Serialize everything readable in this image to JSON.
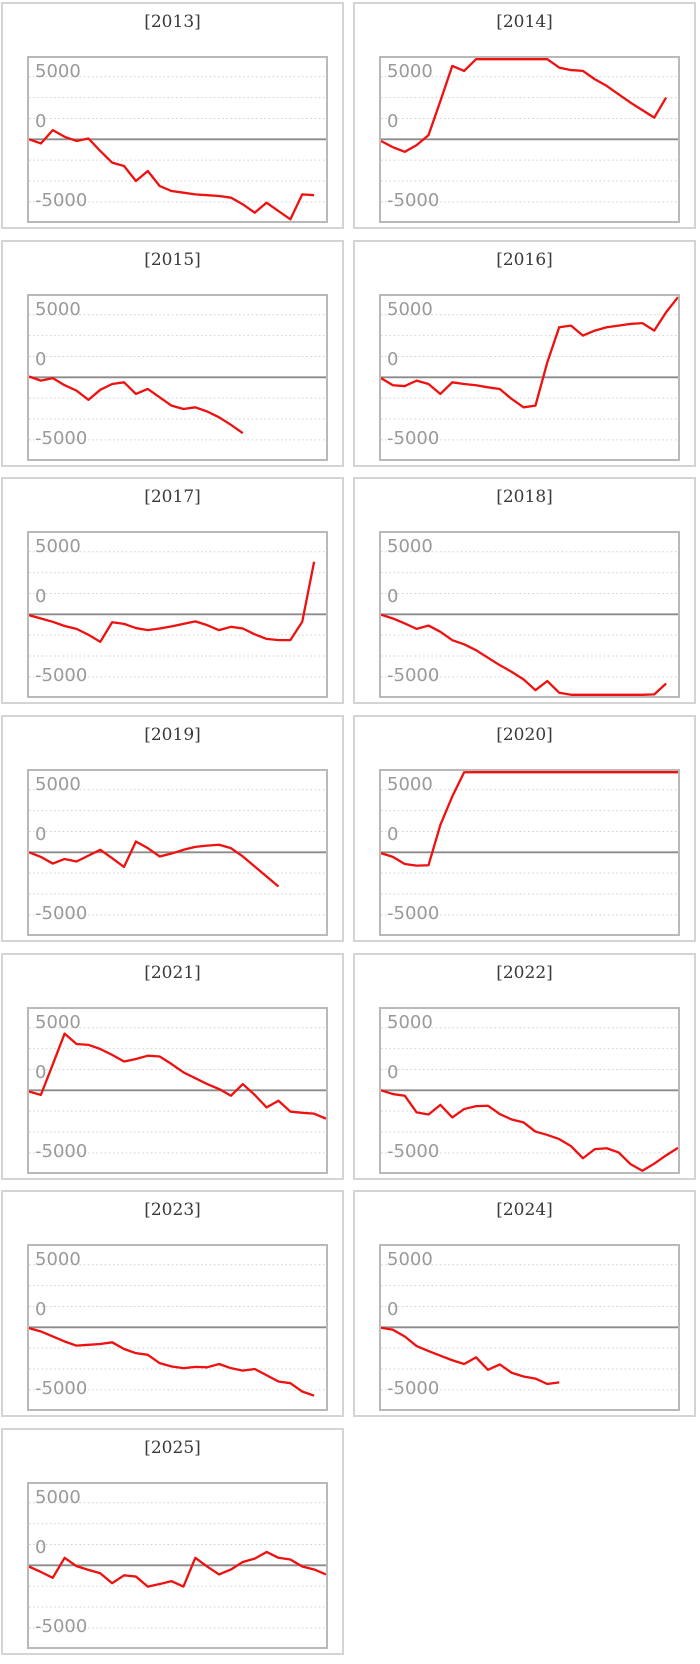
{
  "page": {
    "background": "#ffffff"
  },
  "axis": {
    "tick_labels": [
      "5000",
      "0",
      "-5000"
    ],
    "tick_values": [
      5000,
      0,
      -5000
    ],
    "gridline_step": 2500,
    "ylim": [
      -9800,
      9750
    ],
    "zero_line": true,
    "grid_style": "dotted",
    "x_axis_labels": "none"
  },
  "style": {
    "series_color": "#ef1010",
    "grid_color": "#d2d2d2",
    "zero_line_color": "#8b8b8b",
    "plot_border_color": "#b9b9b9",
    "cell_border_color": "#d4d4d4",
    "title_color": "#3a3a3a",
    "tick_label_color": "#9a9a9a"
  },
  "chart_data": [
    {
      "type": "line",
      "title": "[2013]",
      "legend": "none",
      "x": "index (0-25)",
      "values": [
        0,
        -500,
        1100,
        300,
        -200,
        100,
        -1400,
        -2800,
        -3200,
        -5000,
        -3800,
        -5600,
        -6200,
        -6400,
        -6600,
        -6700,
        -6800,
        -7000,
        -7800,
        -8800,
        -7600,
        -8600,
        -9600,
        -6600,
        -6700
      ]
    },
    {
      "type": "line",
      "title": "[2014]",
      "legend": "none",
      "x": "index (0-25)",
      "values": [
        -200,
        -950,
        -1500,
        -700,
        500,
        4600,
        8800,
        8200,
        9900,
        10000,
        10000,
        10000,
        10000,
        10000,
        10000,
        8600,
        8300,
        8200,
        7200,
        6400,
        5400,
        4400,
        3500,
        2600,
        5000
      ]
    },
    {
      "type": "line",
      "title": "[2015]",
      "legend": "none",
      "x": "index (0-25)",
      "values": [
        100,
        -400,
        -100,
        -950,
        -1600,
        -2700,
        -1500,
        -800,
        -600,
        -2000,
        -1400,
        -2400,
        -3400,
        -3800,
        -3600,
        -4100,
        -4800,
        -5700,
        -6700
      ]
    },
    {
      "type": "line",
      "title": "[2016]",
      "legend": "none",
      "x": "index (0-25)",
      "values": [
        -100,
        -950,
        -1050,
        -400,
        -800,
        -2000,
        -600,
        -800,
        -950,
        -1200,
        -1400,
        -2600,
        -3600,
        -3400,
        1800,
        6000,
        6200,
        5000,
        5600,
        6000,
        6200,
        6400,
        6500,
        5600,
        7800,
        9900
      ]
    },
    {
      "type": "line",
      "title": "[2017]",
      "legend": "none",
      "x": "index (0-25)",
      "values": [
        -100,
        -500,
        -900,
        -1400,
        -1750,
        -2450,
        -3300,
        -950,
        -1150,
        -1650,
        -1900,
        -1700,
        -1450,
        -1150,
        -850,
        -1300,
        -1900,
        -1500,
        -1700,
        -2400,
        -2950,
        -3100,
        -3100,
        -900,
        6300
      ]
    },
    {
      "type": "line",
      "title": "[2018]",
      "legend": "none",
      "x": "index (0-25)",
      "values": [
        -50,
        -500,
        -1100,
        -1750,
        -1350,
        -2100,
        -3100,
        -3600,
        -4300,
        -5200,
        -6100,
        -6900,
        -7800,
        -9100,
        -8000,
        -9400,
        -10000,
        -10000,
        -10000,
        -10000,
        -10000,
        -10000,
        -10000,
        -9600,
        -8300
      ]
    },
    {
      "type": "line",
      "title": "[2019]",
      "legend": "none",
      "x": "index (0-25)",
      "values": [
        0,
        -550,
        -1350,
        -800,
        -1100,
        -400,
        300,
        -700,
        -1750,
        1300,
        500,
        -500,
        -150,
        300,
        650,
        800,
        900,
        500,
        -500,
        -1700,
        -2900,
        -4100
      ]
    },
    {
      "type": "line",
      "title": "[2020]",
      "legend": "none",
      "x": "index (0-25)",
      "values": [
        -100,
        -550,
        -1400,
        -1600,
        -1550,
        3300,
        6700,
        9600,
        10000,
        10000,
        10000,
        10000,
        10000,
        10000,
        10000,
        10000,
        10000,
        10000,
        10000,
        10000,
        10000,
        10000,
        10000,
        10000,
        10000,
        10000
      ]
    },
    {
      "type": "line",
      "title": "[2021]",
      "legend": "none",
      "x": "index (0-25)",
      "values": [
        -150,
        -550,
        3100,
        6800,
        5550,
        5450,
        4950,
        4250,
        3450,
        3750,
        4150,
        4050,
        3150,
        2150,
        1450,
        750,
        150,
        -650,
        750,
        -550,
        -2050,
        -1250,
        -2550,
        -2700,
        -2800,
        -3400
      ]
    },
    {
      "type": "line",
      "title": "[2022]",
      "legend": "none",
      "x": "index (0-25)",
      "values": [
        0,
        -450,
        -650,
        -2650,
        -2900,
        -1750,
        -3250,
        -2250,
        -1900,
        -1850,
        -2850,
        -3500,
        -3850,
        -4950,
        -5350,
        -5850,
        -6700,
        -8150,
        -7050,
        -6950,
        -7450,
        -8850,
        -9650,
        -8800,
        -7800,
        -6900
      ]
    },
    {
      "type": "line",
      "title": "[2023]",
      "legend": "none",
      "x": "index (0-25)",
      "values": [
        -100,
        -500,
        -1100,
        -1700,
        -2200,
        -2100,
        -2000,
        -1800,
        -2600,
        -3100,
        -3300,
        -4300,
        -4700,
        -4900,
        -4750,
        -4800,
        -4400,
        -4900,
        -5200,
        -5000,
        -5750,
        -6500,
        -6700,
        -7700,
        -8200
      ]
    },
    {
      "type": "line",
      "title": "[2024]",
      "legend": "none",
      "x": "index (0-25)",
      "values": [
        -50,
        -300,
        -1100,
        -2250,
        -2850,
        -3400,
        -3950,
        -4400,
        -3600,
        -5100,
        -4450,
        -5450,
        -5900,
        -6150,
        -6800,
        -6600
      ]
    },
    {
      "type": "line",
      "title": "[2025]",
      "legend": "none",
      "x": "index (0-25)",
      "values": [
        -150,
        -800,
        -1500,
        900,
        -100,
        -550,
        -950,
        -2150,
        -1200,
        -1350,
        -2550,
        -2250,
        -1900,
        -2550,
        900,
        -150,
        -1100,
        -500,
        400,
        800,
        1600,
        900,
        700,
        -150,
        -500,
        -1100
      ]
    }
  ]
}
